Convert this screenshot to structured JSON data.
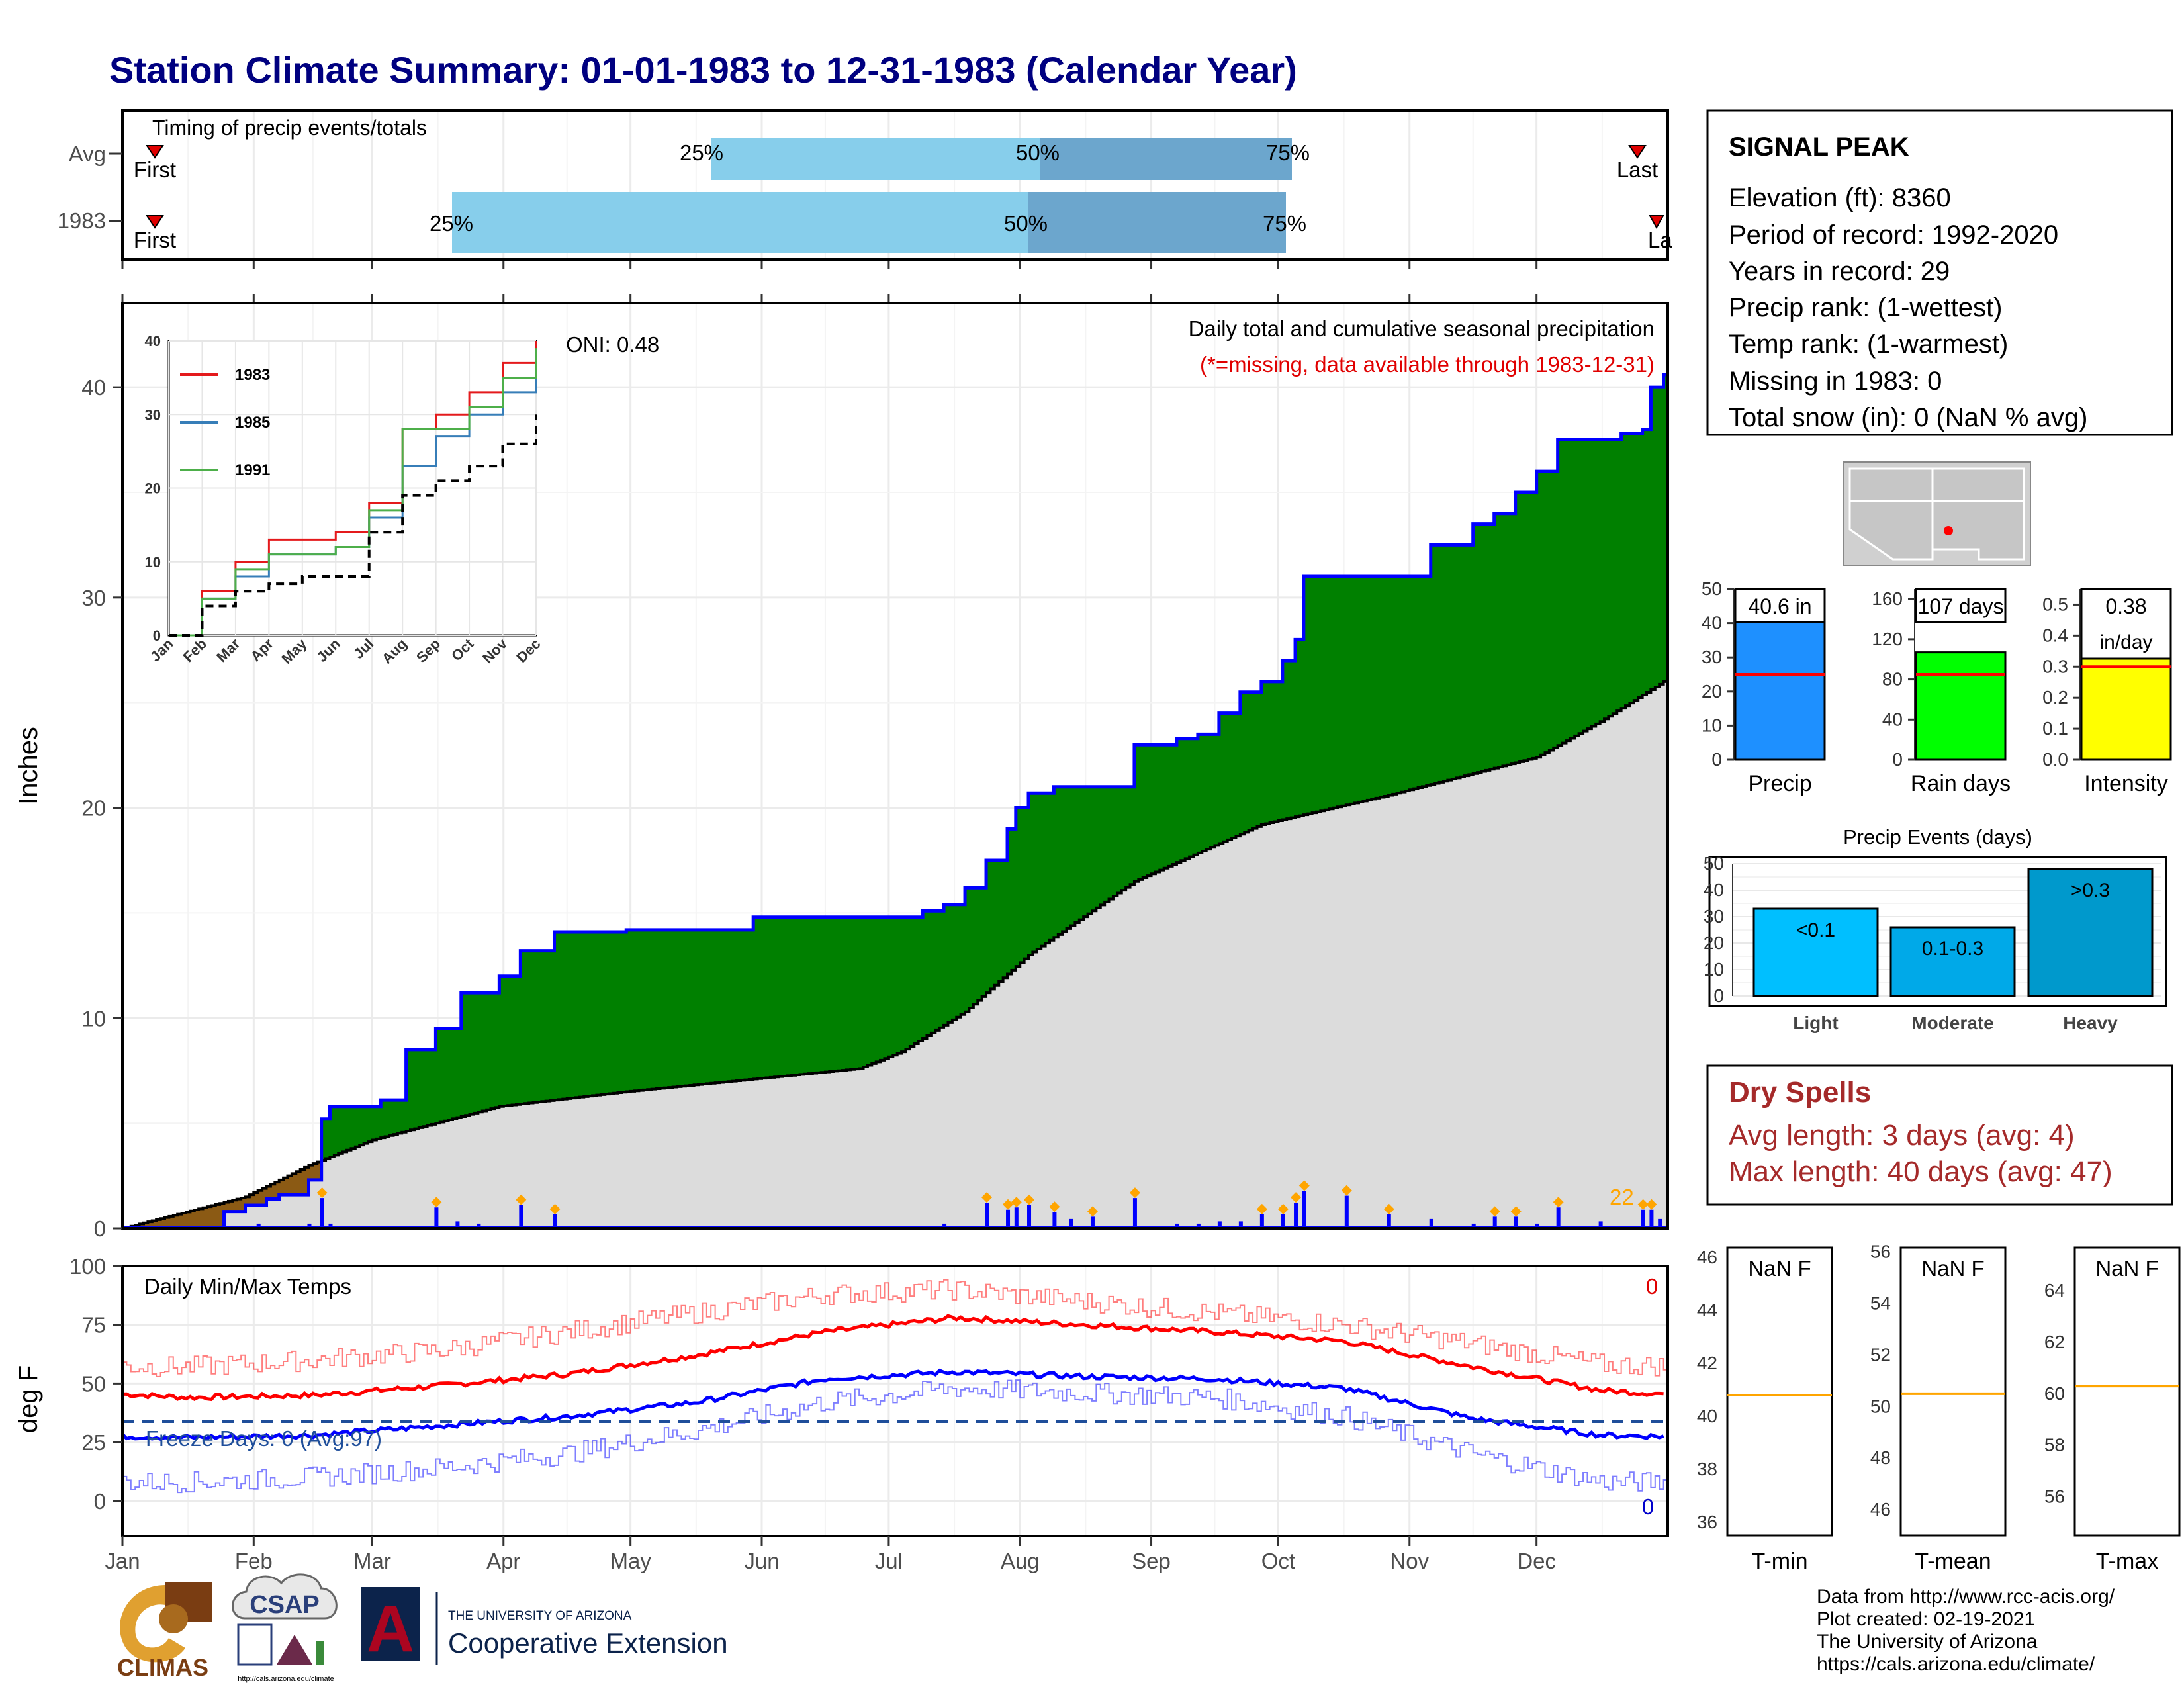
{
  "title": "Station Climate Summary: 01-01-1983 to 12-31-1983 (Calendar Year)",
  "months": [
    "Jan",
    "Feb",
    "Mar",
    "Apr",
    "May",
    "Jun",
    "Jul",
    "Aug",
    "Sep",
    "Oct",
    "Nov",
    "Dec"
  ],
  "timing": {
    "label": "Timing of precip events/totals",
    "rows": [
      {
        "name": "Avg",
        "first": "First",
        "last": "Last",
        "p25": "25%",
        "p50": "50%",
        "p75": "75%"
      },
      {
        "name": "1983",
        "first": "First",
        "last": "La",
        "p25": "25%",
        "p50": "50%",
        "p75": "75%"
      }
    ]
  },
  "precip": {
    "ylabel": "Inches",
    "yticks": [
      "0",
      "10",
      "20",
      "30",
      "40"
    ],
    "oni": "ONI: 0.48",
    "note1": "Daily total and cumulative seasonal precipitation",
    "note2": "(*=missing, data available through 1983-12-31)",
    "count_label": "22"
  },
  "inset": {
    "yticks": [
      "0",
      "10",
      "20",
      "30",
      "40"
    ],
    "legend": [
      {
        "name": "1983",
        "color": "#e41a1c"
      },
      {
        "name": "1985",
        "color": "#377eb8"
      },
      {
        "name": "1991",
        "color": "#4daf4a"
      }
    ]
  },
  "temps": {
    "ylabel": "deg F",
    "label": "Daily Min/Max Temps",
    "freeze": "Freeze Days: 0 (Avg:97)",
    "top_count": "0",
    "bottom_count": "0",
    "yticks": [
      "0",
      "25",
      "50",
      "75",
      "100"
    ]
  },
  "station": {
    "name": "SIGNAL PEAK",
    "lines": [
      "Elevation (ft): 8360",
      "Period of record: 1992-2020",
      "Years in record: 29",
      "Precip rank:  (1-wettest)",
      "Temp rank:  (1-warmest)",
      "Missing in 1983: 0",
      "Total snow (in): 0 (NaN % avg)"
    ]
  },
  "mini_bars": [
    {
      "xlabel": "Precip",
      "value_label": "40.6 in",
      "yticks": [
        "0",
        "10",
        "20",
        "30",
        "40",
        "50"
      ],
      "color": "#1e90ff"
    },
    {
      "xlabel": "Rain days",
      "value_label": "107 days",
      "yticks": [
        "0",
        "40",
        "80",
        "120",
        "160"
      ],
      "color": "#00ff00"
    },
    {
      "xlabel": "Intensity",
      "value_label": "0.38",
      "value_label2": "in/day",
      "yticks": [
        "0.0",
        "0.1",
        "0.2",
        "0.3",
        "0.4",
        "0.5"
      ],
      "color": "#ffff00"
    }
  ],
  "events": {
    "title": "Precip Events (days)",
    "yticks": [
      "0",
      "10",
      "20",
      "30",
      "40",
      "50"
    ],
    "bars": [
      {
        "category": "Light",
        "label": "<0.1",
        "color": "#00bfff"
      },
      {
        "category": "Moderate",
        "label": "0.1-0.3",
        "color": "#00a9e8"
      },
      {
        "category": "Heavy",
        "label": ">0.3",
        "color": "#0099cc"
      }
    ]
  },
  "dry": {
    "title": "Dry Spells",
    "avg": "Avg length: 3 days (avg: 4)",
    "max": "Max length: 40 days (avg: 47)"
  },
  "temp_boxes": [
    {
      "xlabel": "T-min",
      "value": "NaN F",
      "yticks": [
        "36",
        "38",
        "40",
        "42",
        "44",
        "46"
      ]
    },
    {
      "xlabel": "T-mean",
      "value": "NaN F",
      "yticks": [
        "46",
        "48",
        "50",
        "52",
        "54",
        "56"
      ]
    },
    {
      "xlabel": "T-max",
      "value": "NaN F",
      "yticks": [
        "56",
        "58",
        "60",
        "62",
        "64"
      ]
    }
  ],
  "footer": [
    "Data from http://www.rcc-acis.org/",
    "Plot created: 02-19-2021",
    "The University of Arizona",
    "https://cals.arizona.edu/climate/"
  ],
  "logos": {
    "climas": "CLIMAS",
    "csap": "CSAP",
    "csap_url": "http://cals.arizona.edu/climate",
    "ua_top": "THE UNIVERSITY OF ARIZONA",
    "ua_bottom": "Cooperative Extension",
    "ua_letter": "A"
  },
  "colors": {
    "title": "#000080",
    "excess": "#008000",
    "deficit": "#8b5a14",
    "normal_fill": "#dcdcdc",
    "cum_line": "#0000ff",
    "tmax": "#ff0000",
    "tmin": "#0000ff",
    "quart1": "#87ceeb",
    "quart2": "#6ca6cd",
    "dry": "#a52a2a",
    "marker": "#ffa500"
  },
  "chart_data": [
    {
      "type": "area",
      "title": "Daily total and cumulative seasonal precipitation",
      "ylabel": "Inches",
      "ylim": [
        0,
        44
      ],
      "x_unit": "day of year 1983",
      "series": [
        {
          "name": "cumulative 1983",
          "x": [
            1,
            25,
            30,
            35,
            38,
            45,
            48,
            50,
            62,
            68,
            70,
            75,
            81,
            90,
            95,
            100,
            103,
            110,
            120,
            150,
            160,
            170,
            180,
            190,
            195,
            200,
            205,
            210,
            212,
            215,
            221,
            230,
            240,
            250,
            255,
            260,
            265,
            270,
            275,
            278,
            280,
            300,
            310,
            320,
            325,
            330,
            335,
            340,
            350,
            355,
            360,
            362,
            365
          ],
          "y": [
            0,
            0.8,
            1.1,
            1.4,
            1.6,
            2.3,
            5.2,
            5.8,
            6.1,
            8.5,
            8.5,
            9.5,
            11.2,
            12.0,
            13.2,
            13.2,
            14.1,
            14.1,
            14.2,
            14.8,
            14.8,
            14.8,
            14.8,
            15.1,
            15.4,
            16.2,
            17.5,
            19.0,
            20.0,
            20.7,
            21.0,
            21.0,
            23.0,
            23.3,
            23.5,
            24.5,
            25.5,
            26.0,
            27.0,
            28.0,
            31.0,
            31.0,
            32.5,
            33.5,
            34.0,
            35.0,
            36.0,
            37.5,
            37.5,
            37.8,
            38.0,
            40.0,
            40.6
          ]
        },
        {
          "name": "cumulative normal",
          "x": [
            1,
            30,
            45,
            60,
            90,
            120,
            150,
            175,
            185,
            200,
            215,
            240,
            270,
            300,
            335,
            350,
            365
          ],
          "y": [
            0,
            1.5,
            3.0,
            4.2,
            5.8,
            6.5,
            7.1,
            7.6,
            8.4,
            10.3,
            13.0,
            16.5,
            19.2,
            20.6,
            22.4,
            24.1,
            26.0
          ]
        },
        {
          "name": "daily precip events",
          "x": [
            30,
            33,
            45,
            48,
            50,
            55,
            62,
            75,
            80,
            85,
            95,
            103,
            110,
            150,
            155,
            180,
            195,
            205,
            210,
            212,
            215,
            221,
            225,
            230,
            240,
            250,
            255,
            260,
            265,
            270,
            275,
            278,
            280,
            290,
            300,
            310,
            320,
            325,
            330,
            335,
            340,
            350,
            360,
            362,
            364
          ],
          "y": [
            0.1,
            0.2,
            0.2,
            1.3,
            0.2,
            0.1,
            0.1,
            0.9,
            0.3,
            0.2,
            1.0,
            0.6,
            0.1,
            0.1,
            0.1,
            0.1,
            0.2,
            1.1,
            0.8,
            0.9,
            1.0,
            0.7,
            0.4,
            0.5,
            1.3,
            0.2,
            0.2,
            0.3,
            0.3,
            0.6,
            0.6,
            1.1,
            1.6,
            1.4,
            0.6,
            0.4,
            0.2,
            0.5,
            0.5,
            0.2,
            0.9,
            0.3,
            0.8,
            0.8,
            0.4
          ]
        }
      ]
    },
    {
      "type": "line",
      "title": "",
      "ylim": [
        0,
        40
      ],
      "x": [
        "Jan",
        "Feb",
        "Mar",
        "Apr",
        "May",
        "Jun",
        "Jul",
        "Aug",
        "Sep",
        "Oct",
        "Nov",
        "Dec"
      ],
      "series": [
        {
          "name": "1983",
          "values": [
            0,
            6,
            10,
            13,
            13,
            14,
            18,
            28,
            30,
            33,
            37,
            40
          ]
        },
        {
          "name": "1985",
          "values": [
            0,
            5,
            8,
            11,
            11,
            12,
            16,
            23,
            27,
            30,
            33,
            36
          ]
        },
        {
          "name": "1991",
          "values": [
            0,
            5,
            9,
            11,
            11,
            12,
            17,
            28,
            28,
            31,
            35,
            39
          ]
        },
        {
          "values": [
            0,
            4,
            6,
            7,
            8,
            8,
            14,
            19,
            21,
            23,
            26,
            30
          ]
        }
      ]
    },
    {
      "type": "line",
      "title": "Daily Min/Max Temps",
      "ylabel": "deg F",
      "ylim": [
        -15,
        100
      ],
      "x": [
        "Jan",
        "Feb",
        "Mar",
        "Apr",
        "May",
        "Jun",
        "Jul",
        "Aug",
        "Sep",
        "Oct",
        "Nov",
        "Dec"
      ],
      "series": [
        {
          "name": "tmax normal",
          "values": [
            44,
            45,
            49,
            54,
            62,
            72,
            78,
            75,
            72,
            68,
            57,
            47
          ]
        },
        {
          "name": "tmin normal",
          "values": [
            27,
            28,
            32,
            36,
            42,
            52,
            55,
            53,
            52,
            48,
            35,
            28
          ]
        },
        {
          "name": "tmax 1983",
          "values": [
            57,
            60,
            64,
            72,
            80,
            88,
            90,
            85,
            80,
            75,
            67,
            58
          ]
        },
        {
          "name": "tmin 1983",
          "values": [
            8,
            10,
            14,
            20,
            30,
            42,
            48,
            46,
            44,
            36,
            20,
            8
          ]
        }
      ]
    },
    {
      "type": "bar",
      "categories": [
        "Precip",
        "Rain days",
        "Intensity"
      ],
      "values": [
        40.6,
        107,
        0.38
      ],
      "normals": [
        25,
        85,
        0.3
      ]
    },
    {
      "type": "bar",
      "title": "Precip Events (days)",
      "categories": [
        "Light",
        "Moderate",
        "Heavy"
      ],
      "values": [
        33,
        26,
        48
      ],
      "ylim": [
        0,
        50
      ]
    },
    {
      "type": "bar",
      "categories": [
        "T-min",
        "T-mean",
        "T-max"
      ],
      "normals": [
        40.8,
        50.5,
        60.3
      ]
    }
  ]
}
